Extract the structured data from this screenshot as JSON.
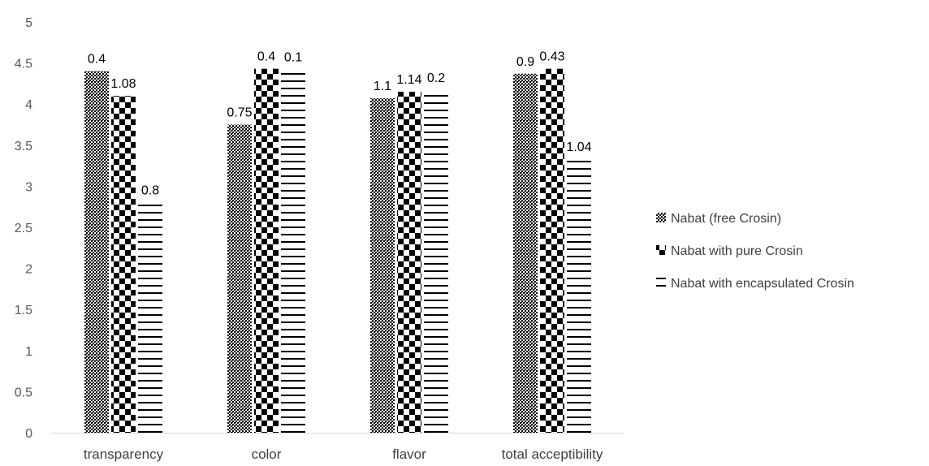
{
  "chart_data": {
    "type": "bar",
    "categories": [
      "transparency",
      "color",
      "flavor",
      "total acceptibility"
    ],
    "series": [
      {
        "name": "Nabat (free Crosin)",
        "pattern": "dots",
        "values": [
          4.4,
          3.75,
          4.07,
          4.37
        ],
        "labels": [
          "0.4",
          "0.75",
          "1.1",
          "0.9"
        ]
      },
      {
        "name": "Nabat with pure Crosin",
        "pattern": "checker",
        "values": [
          4.1,
          4.43,
          4.15,
          4.43
        ],
        "labels": [
          "1.08",
          "0.4",
          "1.14",
          "0.43"
        ]
      },
      {
        "name": "Nabat with encapsulated Crosin",
        "pattern": "hlines",
        "values": [
          2.8,
          4.42,
          4.17,
          3.33
        ],
        "labels": [
          "0.8",
          "0.1",
          "0.2",
          "1.04"
        ]
      }
    ],
    "ylim": [
      0,
      5
    ],
    "yticks": [
      "0",
      "0.5",
      "1",
      "1.5",
      "2",
      "2.5",
      "3",
      "3.5",
      "4",
      "4.5",
      "5"
    ],
    "grid": false,
    "legend_position": "right",
    "colors": {
      "bar_fill": "#000000",
      "background": "#ffffff",
      "axis": "#d9d9d9"
    }
  }
}
